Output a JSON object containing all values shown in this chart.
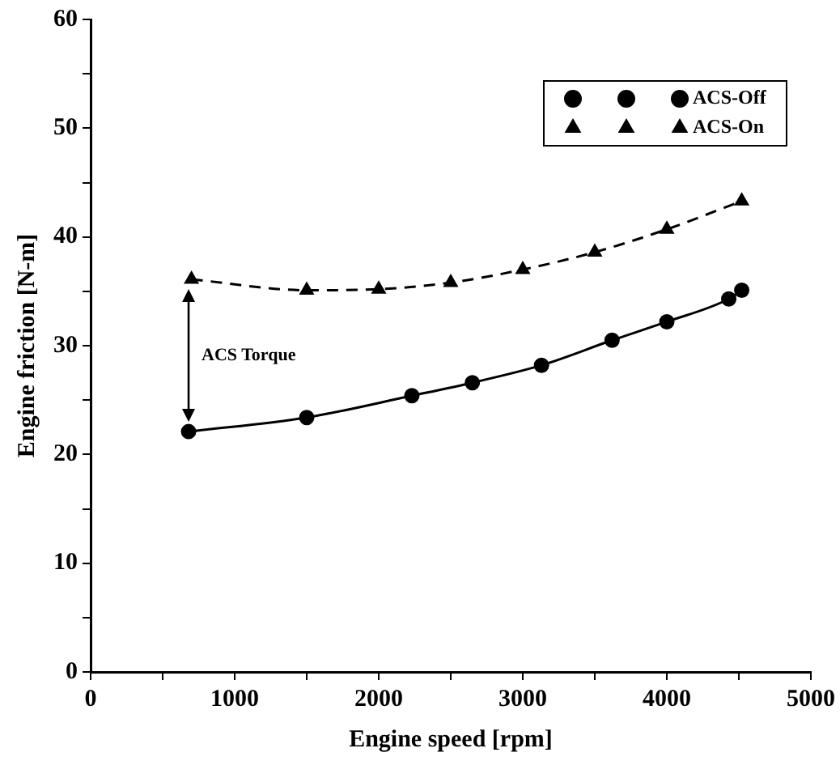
{
  "chart_data": {
    "type": "line",
    "xlabel": "Engine speed [rpm]",
    "ylabel": "Engine friction [N-m]",
    "xlim": [
      0,
      5000
    ],
    "ylim": [
      0,
      60
    ],
    "xticks": [
      0,
      {
        "value": 500,
        "label": null
      },
      1000,
      {
        "value": 1500,
        "label": null
      },
      2000,
      {
        "value": 2500,
        "label": null
      },
      3000,
      {
        "value": 3500,
        "label": null
      },
      4000,
      {
        "value": 4500,
        "label": null
      },
      5000
    ],
    "yticks": [
      0,
      {
        "value": 5,
        "label": null
      },
      10,
      {
        "value": 15,
        "label": null
      },
      20,
      {
        "value": 25,
        "label": null
      },
      30,
      {
        "value": 35,
        "label": null
      },
      40,
      {
        "value": 45,
        "label": null
      },
      50,
      {
        "value": 55,
        "label": null
      },
      60
    ],
    "grid": false,
    "legend": "top right",
    "series": [
      {
        "name": "ACS-Off",
        "color": "#000000",
        "marker": "circle",
        "line_style": "solid",
        "x": [
          680,
          1500,
          2230,
          2650,
          3130,
          3620,
          4000,
          4430,
          4520
        ],
        "values": [
          22.1,
          23.4,
          25.4,
          26.6,
          28.2,
          30.5,
          32.2,
          34.3,
          35.1
        ]
      },
      {
        "name": "ACS-On",
        "color": "#000000",
        "marker": "triangle",
        "line_style": "dashed",
        "x": [
          700,
          1500,
          2000,
          2500,
          3000,
          3500,
          4000,
          4520
        ],
        "values": [
          36.1,
          35.1,
          35.2,
          35.8,
          37.0,
          38.6,
          40.7,
          43.3
        ]
      }
    ],
    "annotations": [
      "ACS Torque"
    ]
  }
}
